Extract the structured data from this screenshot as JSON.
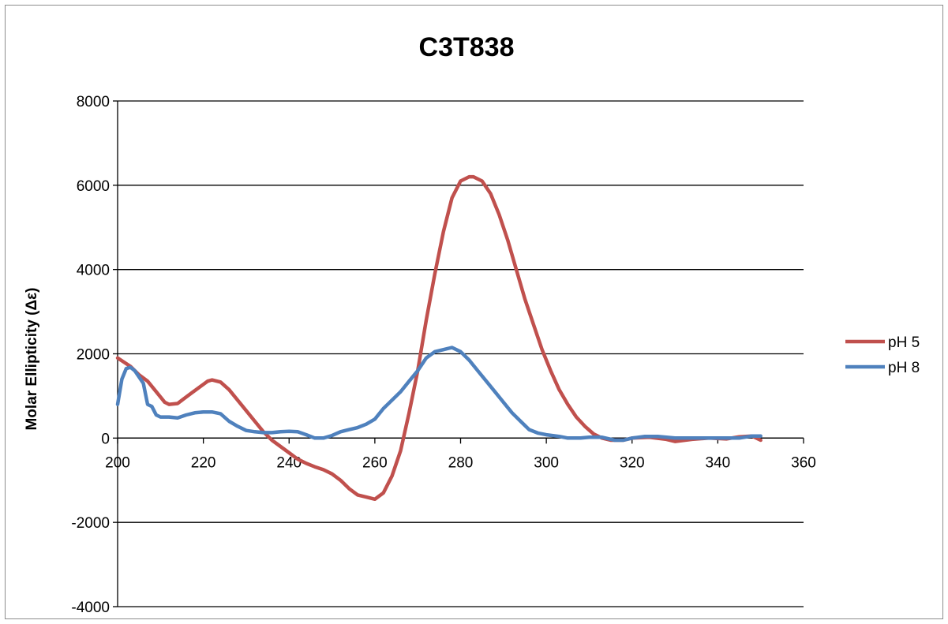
{
  "chart_data": {
    "type": "line",
    "title": "C3T838",
    "xlabel": "",
    "ylabel": "Molar Ellipticity (Δε)",
    "xlim": [
      200,
      360
    ],
    "ylim": [
      -4000,
      8000
    ],
    "x_ticks": [
      200,
      220,
      240,
      260,
      280,
      300,
      320,
      340,
      360
    ],
    "y_ticks": [
      -4000,
      -2000,
      0,
      2000,
      4000,
      6000,
      8000
    ],
    "x_tick_labels": [
      "200",
      "220",
      "240",
      "260",
      "280",
      "300",
      "320",
      "340",
      "360"
    ],
    "y_tick_labels": [
      "-4000",
      "-2000",
      "0",
      "2000",
      "4000",
      "6000",
      "8000"
    ],
    "grid": "horizontal major",
    "legend_position": "right",
    "series": [
      {
        "name": "pH 5",
        "color": "#c0504d",
        "x": [
          200,
          203,
          205,
          207,
          209,
          211,
          212,
          214,
          215,
          217,
          219,
          221,
          222,
          224,
          226,
          228,
          230,
          232,
          234,
          236,
          238,
          240,
          242,
          244,
          246,
          248,
          250,
          252,
          254,
          256,
          258,
          260,
          262,
          264,
          266,
          268,
          270,
          272,
          274,
          276,
          278,
          280,
          282,
          283,
          285,
          287,
          289,
          291,
          293,
          295,
          297,
          299,
          301,
          303,
          305,
          307,
          309,
          311,
          313,
          315,
          318,
          320,
          324,
          328,
          330,
          334,
          338,
          342,
          345,
          348,
          350
        ],
        "y": [
          1900,
          1700,
          1500,
          1350,
          1100,
          850,
          800,
          820,
          900,
          1050,
          1200,
          1350,
          1380,
          1330,
          1150,
          900,
          650,
          400,
          150,
          -50,
          -200,
          -350,
          -500,
          -600,
          -680,
          -750,
          -850,
          -1000,
          -1200,
          -1350,
          -1400,
          -1450,
          -1300,
          -900,
          -300,
          600,
          1600,
          2800,
          3900,
          4900,
          5700,
          6100,
          6200,
          6200,
          6100,
          5800,
          5300,
          4700,
          4000,
          3300,
          2700,
          2100,
          1600,
          1150,
          800,
          500,
          280,
          100,
          0,
          -50,
          -50,
          0,
          20,
          -30,
          -80,
          -30,
          0,
          -20,
          30,
          50,
          -50
        ]
      },
      {
        "name": "pH 8",
        "color": "#4f81bd",
        "x": [
          200,
          201,
          202,
          203,
          204,
          206,
          207,
          208,
          209,
          210,
          212,
          214,
          216,
          218,
          220,
          222,
          224,
          226,
          228,
          230,
          232,
          234,
          236,
          238,
          240,
          242,
          244,
          246,
          248,
          250,
          252,
          254,
          256,
          258,
          260,
          262,
          264,
          266,
          268,
          270,
          272,
          274,
          276,
          278,
          280,
          282,
          284,
          286,
          288,
          290,
          292,
          294,
          296,
          298,
          300,
          303,
          305,
          308,
          310,
          313,
          316,
          318,
          320,
          323,
          326,
          330,
          335,
          340,
          345,
          348,
          350
        ],
        "y": [
          800,
          1400,
          1650,
          1680,
          1600,
          1300,
          800,
          750,
          550,
          500,
          500,
          480,
          550,
          600,
          620,
          620,
          580,
          400,
          280,
          180,
          150,
          130,
          130,
          150,
          160,
          150,
          80,
          0,
          0,
          60,
          150,
          200,
          250,
          330,
          450,
          700,
          900,
          1100,
          1350,
          1600,
          1900,
          2050,
          2100,
          2150,
          2050,
          1850,
          1600,
          1350,
          1100,
          850,
          600,
          400,
          200,
          120,
          80,
          40,
          0,
          0,
          20,
          20,
          -50,
          -50,
          0,
          40,
          40,
          0,
          0,
          0,
          0,
          50,
          50
        ]
      }
    ]
  }
}
